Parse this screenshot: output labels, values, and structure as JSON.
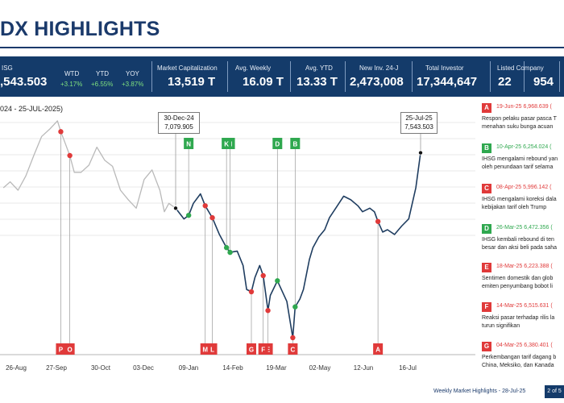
{
  "header": {
    "title": "DX HIGHLIGHTS"
  },
  "stats": {
    "ihsg_label": "ISG",
    "ihsg_value": ",543.503",
    "wtd_label": "WTD",
    "wtd_value": "+3.17%",
    "ytd_label": "YTD",
    "ytd_value": "+6.55%",
    "yoy_label": "YOY",
    "yoy_value": "+3.87%",
    "mcap_label": "Market Capitalization",
    "mcap_value": "13,519 T",
    "avgw_label": "Avg. Weekly",
    "avgw_value": "16.09 T",
    "avgy_label": "Avg. YTD",
    "avgy_value": "13.33 T",
    "newinv_label": "New Inv. 24-J",
    "newinv_value": "2,473,008",
    "totinv_label": "Total Investor",
    "totinv_value": "17,344,647",
    "listed_label": "Listed Company",
    "listed_value_1": "22",
    "listed_value_2": "954"
  },
  "chart_title": "024 - 25-JUL-2025)",
  "callouts": {
    "start": {
      "date": "30-Dec-24",
      "value": "7,079.905"
    },
    "end": {
      "date": "25-Jul-25",
      "value": "7,543.503"
    }
  },
  "annotations": [
    {
      "letter": "A",
      "color": "#e03a3a",
      "date": "19-Jun-25 6,968.639 (",
      "desc": [
        "Respon pelaku pasar pasca T",
        "menahan suku bunga acuan"
      ]
    },
    {
      "letter": "B",
      "color": "#2fa84f",
      "date": "10-Apr-25 6,254.024 (",
      "desc": [
        "IHSG mengalami rebound yan",
        "oleh penundaan tarif selama"
      ]
    },
    {
      "letter": "C",
      "color": "#e03a3a",
      "date": "08-Apr-25 5,996.142 (",
      "desc": [
        "IHSG mengalami koreksi dala",
        "kebijakan tarif oleh Trump"
      ]
    },
    {
      "letter": "D",
      "color": "#2fa84f",
      "date": "26-Mar-25 6,472.356 (",
      "desc": [
        "IHSG kembali rebound di ten",
        "besar dan aksi beli pada saha"
      ]
    },
    {
      "letter": "E",
      "color": "#e03a3a",
      "date": "18-Mar-25 6,223.388 (",
      "desc": [
        "Sentimen domestik dan glob",
        "emiten penyumbang bobot li"
      ]
    },
    {
      "letter": "F",
      "color": "#e03a3a",
      "date": "14-Mar-25 6,515.631 (",
      "desc": [
        "Reaksi pasar terhadap rilis la",
        "turun signifikan"
      ]
    },
    {
      "letter": "G",
      "color": "#e03a3a",
      "date": "04-Mar-25 6,380.401 (",
      "desc": [
        "Perkembangan tarif dagang b",
        "China, Meksiko, dan Kanada"
      ]
    }
  ],
  "footer": {
    "text": "Weekly Market Highlights - 28-Jul-25",
    "page": "2 of 5"
  },
  "chart_data": {
    "type": "line",
    "x_ticks": [
      "26-Aug",
      "27-Sep",
      "30-Oct",
      "03-Dec",
      "09-Jan",
      "14-Feb",
      "19-Mar",
      "02-May",
      "12-Jun",
      "16-Jul"
    ],
    "series": [
      {
        "x": [
          "2024-07-30",
          "2024-08-05",
          "2024-08-12",
          "2024-08-19",
          "2024-08-26",
          "2024-09-02",
          "2024-09-09",
          "2024-09-16",
          "2024-09-19",
          "2024-09-23",
          "2024-09-27",
          "2024-10-01",
          "2024-10-07",
          "2024-10-14",
          "2024-10-21",
          "2024-10-28",
          "2024-11-04",
          "2024-11-11",
          "2024-11-18",
          "2024-11-25",
          "2024-12-02",
          "2024-12-09",
          "2024-12-16",
          "2024-12-20",
          "2024-12-24",
          "2024-12-30"
        ],
        "values": [
          7250,
          7300,
          7230,
          7350,
          7520,
          7680,
          7740,
          7810,
          7720,
          7620,
          7520,
          7380,
          7380,
          7440,
          7590,
          7480,
          7430,
          7230,
          7150,
          7080,
          7320,
          7400,
          7230,
          7050,
          7120,
          7079.905
        ]
      },
      {
        "x": [
          "2024-12-30",
          "2025-01-06",
          "2025-01-10",
          "2025-01-14",
          "2025-01-20",
          "2025-01-24",
          "2025-01-30",
          "2025-02-05",
          "2025-02-11",
          "2025-02-14",
          "2025-02-20",
          "2025-02-25",
          "2025-02-28",
          "2025-03-04",
          "2025-03-07",
          "2025-03-11",
          "2025-03-14",
          "2025-03-18",
          "2025-03-20",
          "2025-03-26",
          "2025-04-03",
          "2025-04-08",
          "2025-04-10",
          "2025-04-14",
          "2025-04-17",
          "2025-04-22",
          "2025-04-25",
          "2025-04-30",
          "2025-05-05",
          "2025-05-09",
          "2025-05-15",
          "2025-05-21",
          "2025-05-27",
          "2025-06-02",
          "2025-06-06",
          "2025-06-12",
          "2025-06-16",
          "2025-06-19",
          "2025-06-23",
          "2025-06-27",
          "2025-07-03",
          "2025-07-09",
          "2025-07-15",
          "2025-07-21",
          "2025-07-25"
        ],
        "values": [
          7079.905,
          6990,
          7020,
          7120,
          7200,
          7100,
          7000,
          6860,
          6750,
          6710,
          6720,
          6600,
          6400,
          6380.401,
          6500,
          6600,
          6515.631,
          6223.388,
          6350,
          6472.356,
          6300,
          5996.142,
          6254.024,
          6320,
          6400,
          6650,
          6750,
          6840,
          6900,
          7000,
          7090,
          7180,
          7150,
          7100,
          7050,
          7080,
          7050,
          6968.639,
          6880,
          6900,
          6860,
          6930,
          6990,
          7250,
          7543.503
        ]
      }
    ],
    "events": [
      {
        "label": "A",
        "date": "2025-06-19",
        "value": 6968.639,
        "color": "#e03a3a",
        "pos": "bottom"
      },
      {
        "label": "B",
        "date": "2025-04-10",
        "value": 6254.024,
        "color": "#2fa84f",
        "pos": "top"
      },
      {
        "label": "C",
        "date": "2025-04-08",
        "value": 5996.142,
        "color": "#e03a3a",
        "pos": "bottom"
      },
      {
        "label": "D",
        "date": "2025-03-26",
        "value": 6472.356,
        "color": "#2fa84f",
        "pos": "top"
      },
      {
        "label": "E",
        "date": "2025-03-18",
        "value": 6223.388,
        "color": "#e03a3a",
        "pos": "bottom"
      },
      {
        "label": "F",
        "date": "2025-03-14",
        "value": 6515.631,
        "color": "#e03a3a",
        "pos": "bottom"
      },
      {
        "label": "G",
        "date": "2025-03-04",
        "value": 6380.401,
        "color": "#e03a3a",
        "pos": "bottom"
      },
      {
        "label": "H",
        "date": "2025-02-14",
        "value": 6710,
        "color": "#2fa84f",
        "pos": "top"
      },
      {
        "label": "K",
        "date": "2025-02-11",
        "value": 6750,
        "color": "#2fa84f",
        "pos": "top"
      },
      {
        "label": "L",
        "date": "2025-01-30",
        "value": 7000,
        "color": "#e03a3a",
        "pos": "bottom"
      },
      {
        "label": "M",
        "date": "2025-01-24",
        "value": 7100,
        "color": "#e03a3a",
        "pos": "bottom"
      },
      {
        "label": "N",
        "date": "2025-01-10",
        "value": 7020,
        "color": "#2fa84f",
        "pos": "top"
      },
      {
        "label": "O",
        "date": "2024-09-27",
        "value": 7520,
        "color": "#e03a3a",
        "pos": "bottom"
      },
      {
        "label": "P",
        "date": "2024-09-19",
        "value": 7720,
        "color": "#e03a3a",
        "pos": "bottom"
      }
    ],
    "ylim": [
      5950,
      7900
    ]
  }
}
